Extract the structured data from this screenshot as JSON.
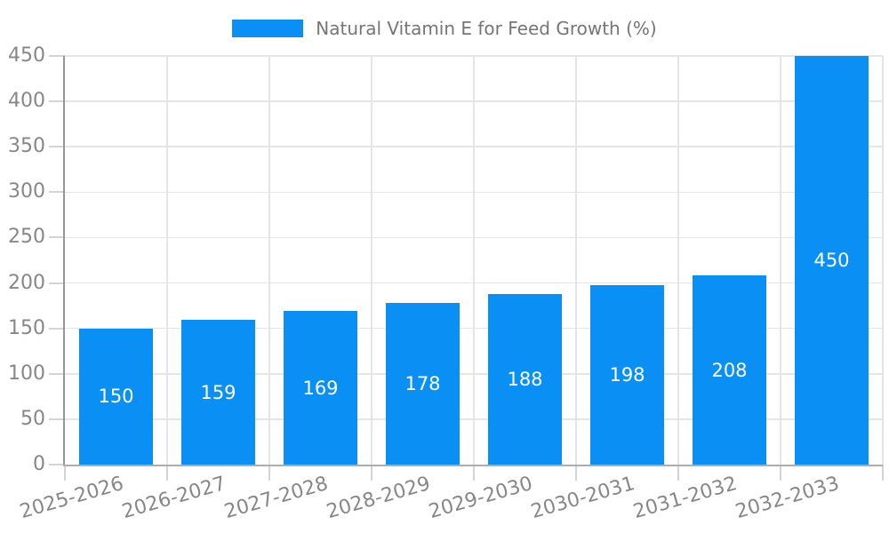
{
  "chart_data": {
    "type": "bar",
    "title": "Natural Vitamin E for Feed Growth (%)",
    "legend_position": "top",
    "categories": [
      "2025-2026",
      "2026-2027",
      "2027-2028",
      "2028-2029",
      "2029-2030",
      "2030-2031",
      "2031-2032",
      "2032-2033"
    ],
    "series": [
      {
        "name": "Natural Vitamin E for Feed Growth (%)",
        "values": [
          150,
          159,
          169,
          178,
          188,
          198,
          208,
          450
        ]
      }
    ],
    "xlabel": "",
    "ylabel": "",
    "ylim": [
      0,
      450
    ],
    "yticks": [
      0,
      50,
      100,
      150,
      200,
      250,
      300,
      350,
      400,
      450
    ],
    "grid": true,
    "value_label_placement": "inside-center",
    "x_label_rotation_deg": -16
  },
  "colors": {
    "bar": "#0a90f5",
    "grid": "#e5e5e5",
    "axis_y": "#969696",
    "axis_x": "#adadad",
    "tick": "#d4d4d4",
    "tick_label": "#878787",
    "legend_text": "#757575",
    "value_label": "#ffffff",
    "background": "#ffffff"
  }
}
